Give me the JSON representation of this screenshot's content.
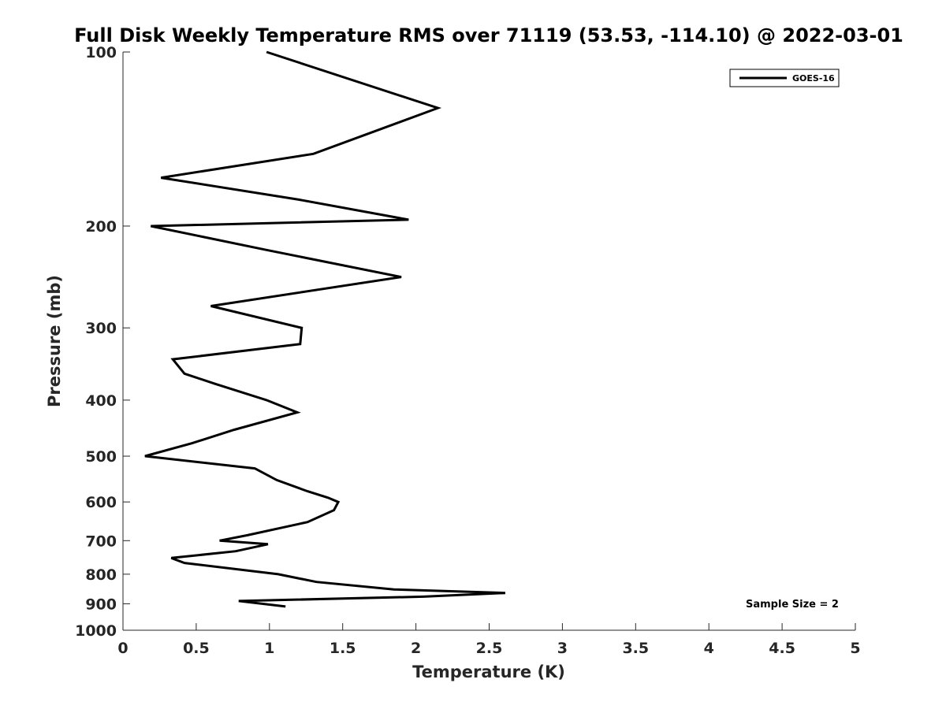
{
  "chart_data": {
    "type": "line",
    "title": "Full Disk Weekly Temperature RMS over 71119 (53.53, -114.10) @ 2022-03-01",
    "xlabel": "Temperature (K)",
    "ylabel": "Pressure (mb)",
    "xlim": [
      0,
      5
    ],
    "ylim": [
      100,
      1000
    ],
    "y_scale": "log",
    "y_reversed": true,
    "grid": false,
    "legend_position": "top-right",
    "x_ticks": [
      "0",
      "0.5",
      "1",
      "1.5",
      "2",
      "2.5",
      "3",
      "3.5",
      "4",
      "4.5",
      "5"
    ],
    "y_ticks": [
      "100",
      "200",
      "300",
      "400",
      "500",
      "600",
      "700",
      "800",
      "900",
      "1000"
    ],
    "annotation": "Sample Size = 2",
    "series": [
      {
        "name": "GOES-16",
        "color": "#000000",
        "points": [
          [
            0.98,
            100
          ],
          [
            2.15,
            125
          ],
          [
            1.3,
            150
          ],
          [
            0.26,
            165
          ],
          [
            1.2,
            180
          ],
          [
            1.95,
            195
          ],
          [
            0.19,
            200
          ],
          [
            0.98,
            220
          ],
          [
            1.9,
            245
          ],
          [
            0.6,
            275
          ],
          [
            1.22,
            300
          ],
          [
            1.21,
            320
          ],
          [
            0.34,
            340
          ],
          [
            0.42,
            360
          ],
          [
            0.63,
            375
          ],
          [
            0.98,
            400
          ],
          [
            1.19,
            420
          ],
          [
            0.76,
            450
          ],
          [
            0.47,
            475
          ],
          [
            0.15,
            500
          ],
          [
            0.9,
            525
          ],
          [
            1.05,
            550
          ],
          [
            1.26,
            575
          ],
          [
            1.4,
            590
          ],
          [
            1.47,
            600
          ],
          [
            1.44,
            620
          ],
          [
            1.26,
            650
          ],
          [
            0.85,
            685
          ],
          [
            0.66,
            700
          ],
          [
            0.99,
            710
          ],
          [
            0.77,
            730
          ],
          [
            0.33,
            750
          ],
          [
            0.42,
            765
          ],
          [
            1.06,
            800
          ],
          [
            1.32,
            825
          ],
          [
            1.85,
            850
          ],
          [
            2.61,
            862
          ],
          [
            2.05,
            875
          ],
          [
            0.79,
            890
          ],
          [
            1.11,
            910
          ]
        ]
      }
    ]
  }
}
